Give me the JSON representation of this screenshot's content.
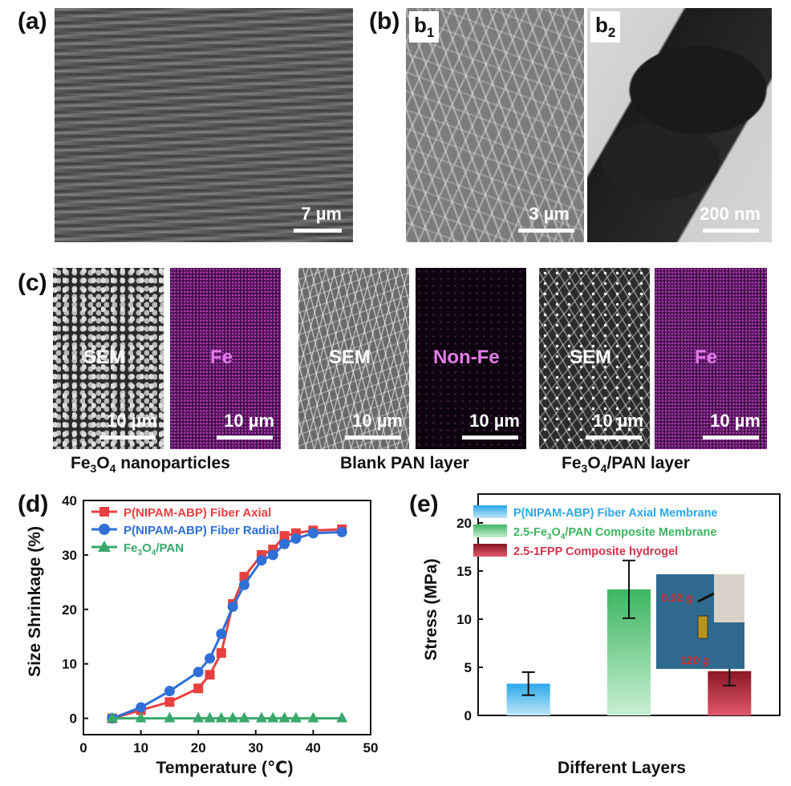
{
  "panel_a": {
    "label": "(a)",
    "scale": "7 µm"
  },
  "panel_b": {
    "label": "(b)",
    "b1": {
      "label_main": "b",
      "label_sub": "1",
      "scale": "3 µm"
    },
    "b2": {
      "label_main": "b",
      "label_sub": "2",
      "scale": "200 nm"
    }
  },
  "panel_c": {
    "label": "(c)",
    "groups": [
      {
        "caption_pre": "Fe",
        "caption_sub": "3",
        "caption_mid": "O",
        "caption_sub2": "4",
        "caption_post": " nanoparticles",
        "sem_label": "SEM",
        "map_label": "Fe",
        "scale": "10 µm"
      },
      {
        "caption_pre": "Blank PAN layer",
        "caption_sub": "",
        "caption_mid": "",
        "caption_sub2": "",
        "caption_post": "",
        "sem_label": "SEM",
        "map_label": "Non-Fe",
        "scale": "10 µm"
      },
      {
        "caption_pre": "Fe",
        "caption_sub": "3",
        "caption_mid": "O",
        "caption_sub2": "4",
        "caption_post": "/PAN layer",
        "sem_label": "SEM",
        "map_label": "Fe",
        "scale": "10 µm"
      }
    ],
    "colors": {
      "map_text": "#e27ce8"
    }
  },
  "panel_d": {
    "label": "(d)"
  },
  "panel_e": {
    "label": "(e)",
    "inset_top": "0.02 g",
    "inset_bottom": "120 g"
  },
  "chart_data": [
    {
      "type": "line",
      "xlabel": "Temperature (℃)",
      "ylabel": "Size Shrinkage (%)",
      "xlim": [
        0,
        50
      ],
      "ylim": [
        -3,
        40
      ],
      "xticks": [
        "0",
        "10",
        "20",
        "30",
        "40",
        "50"
      ],
      "yticks": [
        "0",
        "10",
        "20",
        "30",
        "40"
      ],
      "legend_position": "top-left",
      "series": [
        {
          "name": "P(NIPAM-ABP) Fiber Axial",
          "color": "#e84040",
          "marker": "square",
          "x": [
            5,
            10,
            15,
            20,
            22,
            24,
            26,
            28,
            31,
            33,
            35,
            37,
            40,
            45
          ],
          "y": [
            0,
            1.5,
            3,
            5.5,
            8,
            12,
            21,
            26,
            30,
            31,
            33.5,
            34,
            34.5,
            34.7
          ]
        },
        {
          "name": "P(NIPAM-ABP) Fiber Radial",
          "color": "#2f6fd6",
          "marker": "circle",
          "x": [
            5,
            10,
            15,
            20,
            22,
            24,
            26,
            28,
            31,
            33,
            35,
            37,
            40,
            45
          ],
          "y": [
            0,
            2,
            5,
            8.5,
            11,
            15.5,
            20.5,
            24.5,
            29,
            30,
            32,
            33,
            34,
            34.2
          ]
        },
        {
          "name_pre": "Fe",
          "name_sub": "3",
          "name_mid": "O",
          "name_sub2": "4",
          "name_post": "/PAN",
          "color": "#3aa86a",
          "marker": "triangle",
          "x": [
            5,
            10,
            15,
            20,
            22,
            24,
            26,
            28,
            31,
            33,
            35,
            37,
            40,
            45
          ],
          "y": [
            0,
            0,
            0,
            0,
            0,
            0,
            0,
            0,
            0,
            0,
            0,
            0,
            0,
            0
          ]
        }
      ]
    },
    {
      "type": "bar",
      "xlabel": "Different Layers",
      "ylabel": "Stress (MPa)",
      "ylim": [
        0,
        23
      ],
      "yticks": [
        "0",
        "5",
        "10",
        "15",
        "20"
      ],
      "legend_position": "top-left",
      "series": [
        {
          "name": "P(NIPAM-ABP) Fiber Axial Membrane",
          "value": 3.3,
          "error": 1.2,
          "color": "#4fb8ea"
        },
        {
          "name_pre": "2.5-Fe",
          "name_sub": "3",
          "name_mid": "O",
          "name_sub2": "4",
          "name_post": "/PAN Composite Membrane",
          "value": 13.1,
          "error": 3.0,
          "color": "#5fc67a"
        },
        {
          "name": "2.5-1FPP Composite hydrogel",
          "value": 4.6,
          "error": 1.5,
          "color": "#b02a3c"
        }
      ]
    }
  ]
}
